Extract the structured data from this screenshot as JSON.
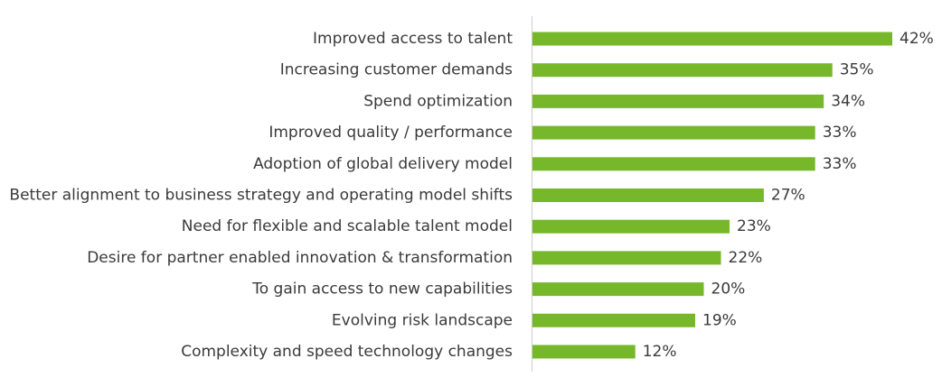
{
  "chart_data": {
    "type": "bar",
    "orientation": "horizontal",
    "categories": [
      "Improved access to talent",
      "Increasing customer demands",
      "Spend optimization",
      "Improved quality / performance",
      "Adoption of global delivery model",
      "Better alignment to business strategy and operating model shifts",
      "Need for flexible and scalable talent model",
      "Desire for partner enabled innovation & transformation",
      "To gain access to new capabilities",
      "Evolving risk landscape",
      "Complexity and speed technology changes"
    ],
    "values": [
      42,
      35,
      34,
      33,
      33,
      27,
      23,
      22,
      20,
      19,
      12
    ],
    "value_labels": [
      "42%",
      "35%",
      "34%",
      "33%",
      "33%",
      "27%",
      "23%",
      "22%",
      "20%",
      "19%",
      "12%"
    ],
    "title": "",
    "xlabel": "",
    "ylabel": "",
    "xlim": [
      0,
      42
    ],
    "grid": false,
    "legend": "none",
    "colors": {
      "bar": "#76b82a",
      "axis": "#cccccc",
      "text": "#3a3a3a"
    }
  }
}
